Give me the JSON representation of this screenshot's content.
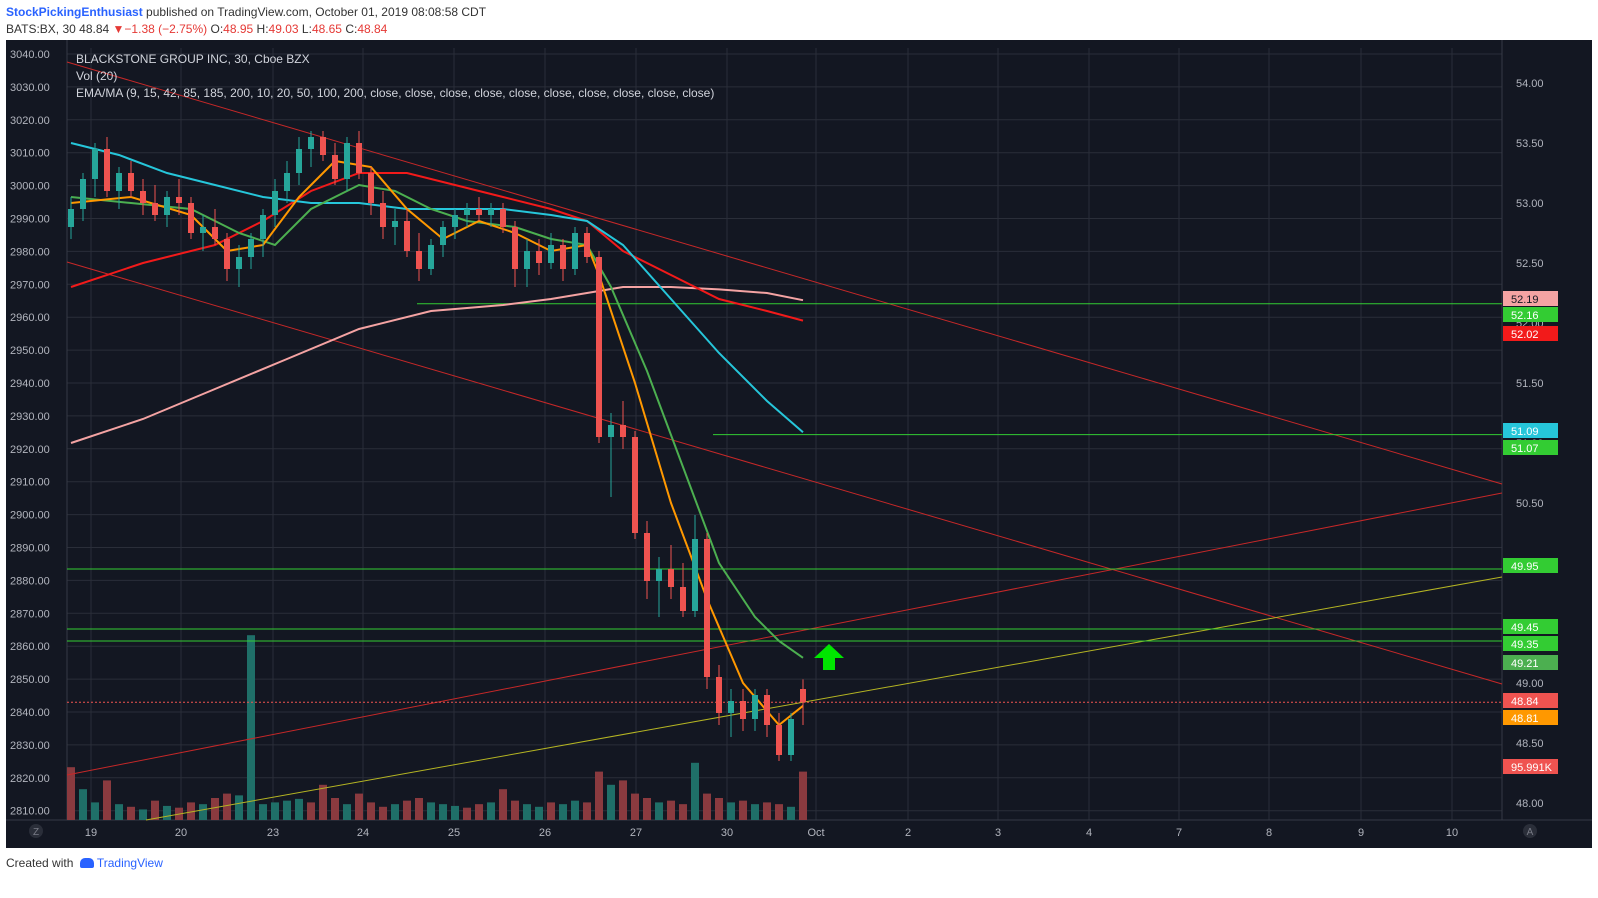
{
  "header": {
    "author": "StockPickingEnthusiast",
    "published_text": "published on TradingView.com, October 01, 2019 08:08:58 CDT",
    "symbol": "BATS:BX, 30",
    "last": "48.84",
    "change_arrow": "▼",
    "change": "−1.38 (−2.75%)",
    "open_label": "O:",
    "open": "48.95",
    "high_label": "H:",
    "high": "49.03",
    "low_label": "L:",
    "low": "48.65",
    "close_label": "C:",
    "close": "48.84"
  },
  "overlay": {
    "title": "BLACKSTONE GROUP INC, 30, Cboe BZX",
    "vol": "Vol (20)",
    "ema": "EMA/MA (9, 15, 42, 85, 185, 200, 10, 20, 50, 100, 200, close, close, close, close, close, close, close, close, close, close)"
  },
  "footer": {
    "created_with": "Created with",
    "brand": "TradingView"
  },
  "corner_buttons": {
    "left": "Z",
    "right": "A"
  },
  "colors": {
    "background": "#131722",
    "grid": "#2a2e39",
    "up": "#26a69a",
    "down": "#ef5350",
    "ema_orange": "#ff9800",
    "ema_green": "#4caf50",
    "ema_cyan": "#26c6da",
    "ma_red": "#f21a1a",
    "ma_pink": "#f4a3a3",
    "hline": "#33cc33",
    "trend_red": "#c62828",
    "trend_yellow": "#b5b523",
    "arrow": "#00e600"
  },
  "chart_data": {
    "type": "candlestick",
    "title": "BLACKSTONE GROUP INC, 30, Cboe BZX",
    "left_axis_ticks": [
      "3040.00",
      "3030.00",
      "3020.00",
      "3010.00",
      "3000.00",
      "2990.00",
      "2980.00",
      "2970.00",
      "2960.00",
      "2950.00",
      "2940.00",
      "2930.00",
      "2920.00",
      "2910.00",
      "2900.00",
      "2890.00",
      "2880.00",
      "2870.00",
      "2860.00",
      "2850.00",
      "2840.00",
      "2830.00",
      "2820.00",
      "2810.00"
    ],
    "left_axis_range": [
      2810,
      3040
    ],
    "right_axis_ticks": [
      "54.00",
      "53.50",
      "53.00",
      "52.50",
      "52.00",
      "51.50",
      "51.00",
      "50.50",
      "50.00",
      "49.50",
      "49.00",
      "48.50",
      "48.00"
    ],
    "right_axis_range": [
      48.0,
      54.0
    ],
    "x_ticks": [
      "19",
      "20",
      "23",
      "24",
      "25",
      "26",
      "27",
      "30",
      "Oct",
      "2",
      "3",
      "4",
      "7",
      "8",
      "9",
      "10"
    ],
    "price_labels": [
      {
        "value": "52.19",
        "color": "#f4a3a3"
      },
      {
        "value": "52.16",
        "color": "#33cc33"
      },
      {
        "value": "52.02",
        "color": "#f21a1a"
      },
      {
        "value": "51.09",
        "color": "#26c6da"
      },
      {
        "value": "51.07",
        "color": "#33cc33"
      },
      {
        "value": "49.95",
        "color": "#33cc33"
      },
      {
        "value": "49.45",
        "color": "#33cc33"
      },
      {
        "value": "49.35",
        "color": "#33cc33"
      },
      {
        "value": "49.21",
        "color": "#4caf50"
      },
      {
        "value": "48.84",
        "color": "#ef5350"
      },
      {
        "value": "48.81",
        "color": "#ff9800"
      },
      {
        "value": "95.991K",
        "color": "#ef5350"
      }
    ],
    "horizontal_levels": [
      52.16,
      51.07,
      49.95,
      49.45,
      49.35
    ],
    "last_price": 48.84,
    "candles": [
      [
        52.8,
        53.05,
        52.7,
        52.95
      ],
      [
        52.95,
        53.25,
        52.85,
        53.2
      ],
      [
        53.2,
        53.5,
        53.05,
        53.45
      ],
      [
        53.45,
        53.55,
        53.05,
        53.1
      ],
      [
        53.1,
        53.3,
        52.95,
        53.25
      ],
      [
        53.25,
        53.35,
        53.05,
        53.1
      ],
      [
        53.1,
        53.2,
        52.9,
        53.0
      ],
      [
        53.0,
        53.15,
        52.85,
        52.9
      ],
      [
        52.9,
        53.1,
        52.8,
        53.05
      ],
      [
        53.05,
        53.2,
        52.9,
        53.0
      ],
      [
        53.0,
        53.05,
        52.7,
        52.75
      ],
      [
        52.75,
        52.9,
        52.6,
        52.8
      ],
      [
        52.8,
        52.95,
        52.65,
        52.7
      ],
      [
        52.7,
        52.75,
        52.35,
        52.45
      ],
      [
        52.45,
        52.65,
        52.3,
        52.55
      ],
      [
        52.55,
        52.75,
        52.45,
        52.7
      ],
      [
        52.7,
        52.95,
        52.55,
        52.9
      ],
      [
        52.9,
        53.2,
        52.8,
        53.1
      ],
      [
        53.1,
        53.35,
        53.0,
        53.25
      ],
      [
        53.25,
        53.55,
        53.15,
        53.45
      ],
      [
        53.45,
        53.6,
        53.3,
        53.55
      ],
      [
        53.55,
        53.6,
        53.35,
        53.4
      ],
      [
        53.4,
        53.5,
        53.15,
        53.2
      ],
      [
        53.2,
        53.55,
        53.1,
        53.5
      ],
      [
        53.5,
        53.6,
        53.2,
        53.25
      ],
      [
        53.25,
        53.3,
        52.9,
        53.0
      ],
      [
        53.0,
        53.1,
        52.7,
        52.8
      ],
      [
        52.8,
        52.95,
        52.65,
        52.85
      ],
      [
        52.85,
        52.95,
        52.55,
        52.6
      ],
      [
        52.6,
        52.75,
        52.35,
        52.45
      ],
      [
        52.45,
        52.7,
        52.4,
        52.65
      ],
      [
        52.65,
        52.85,
        52.55,
        52.8
      ],
      [
        52.8,
        52.95,
        52.7,
        52.9
      ],
      [
        52.9,
        53.0,
        52.8,
        52.95
      ],
      [
        52.95,
        53.05,
        52.85,
        52.9
      ],
      [
        52.9,
        53.0,
        52.8,
        52.95
      ],
      [
        52.95,
        53.0,
        52.75,
        52.8
      ],
      [
        52.8,
        52.85,
        52.3,
        52.45
      ],
      [
        52.45,
        52.7,
        52.3,
        52.6
      ],
      [
        52.6,
        52.7,
        52.4,
        52.5
      ],
      [
        52.5,
        52.75,
        52.45,
        52.65
      ],
      [
        52.65,
        52.7,
        52.35,
        52.45
      ],
      [
        52.45,
        52.8,
        52.4,
        52.75
      ],
      [
        52.75,
        52.8,
        52.5,
        52.55
      ],
      [
        52.55,
        52.6,
        51.0,
        51.05
      ],
      [
        51.05,
        51.25,
        50.55,
        51.15
      ],
      [
        51.15,
        51.35,
        50.95,
        51.05
      ],
      [
        51.05,
        51.1,
        50.2,
        50.25
      ],
      [
        50.25,
        50.35,
        49.7,
        49.85
      ],
      [
        49.85,
        50.05,
        49.55,
        49.95
      ],
      [
        49.95,
        50.15,
        49.7,
        49.8
      ],
      [
        49.8,
        50.0,
        49.55,
        49.6
      ],
      [
        49.6,
        50.4,
        49.55,
        50.2
      ],
      [
        50.2,
        50.25,
        48.95,
        49.05
      ],
      [
        49.05,
        49.15,
        48.65,
        48.75
      ],
      [
        48.75,
        48.95,
        48.55,
        48.85
      ],
      [
        48.85,
        48.95,
        48.6,
        48.7
      ],
      [
        48.7,
        48.95,
        48.6,
        48.9
      ],
      [
        48.9,
        48.95,
        48.55,
        48.65
      ],
      [
        48.65,
        48.75,
        48.35,
        48.4
      ],
      [
        48.4,
        48.75,
        48.35,
        48.7
      ],
      [
        48.95,
        49.03,
        48.65,
        48.84
      ]
    ],
    "volume": [
      {
        "v": 60,
        "up": false
      },
      {
        "v": 35,
        "up": true
      },
      {
        "v": 20,
        "up": true
      },
      {
        "v": 45,
        "up": false
      },
      {
        "v": 18,
        "up": true
      },
      {
        "v": 15,
        "up": false
      },
      {
        "v": 12,
        "up": true
      },
      {
        "v": 22,
        "up": false
      },
      {
        "v": 16,
        "up": true
      },
      {
        "v": 14,
        "up": false
      },
      {
        "v": 20,
        "up": false
      },
      {
        "v": 18,
        "up": true
      },
      {
        "v": 25,
        "up": false
      },
      {
        "v": 30,
        "up": false
      },
      {
        "v": 28,
        "up": true
      },
      {
        "v": 210,
        "up": true
      },
      {
        "v": 18,
        "up": true
      },
      {
        "v": 20,
        "up": true
      },
      {
        "v": 22,
        "up": true
      },
      {
        "v": 24,
        "up": true
      },
      {
        "v": 20,
        "up": false
      },
      {
        "v": 40,
        "up": false
      },
      {
        "v": 25,
        "up": false
      },
      {
        "v": 18,
        "up": true
      },
      {
        "v": 30,
        "up": false
      },
      {
        "v": 20,
        "up": false
      },
      {
        "v": 15,
        "up": false
      },
      {
        "v": 18,
        "up": true
      },
      {
        "v": 22,
        "up": false
      },
      {
        "v": 25,
        "up": false
      },
      {
        "v": 20,
        "up": true
      },
      {
        "v": 18,
        "up": true
      },
      {
        "v": 16,
        "up": true
      },
      {
        "v": 14,
        "up": false
      },
      {
        "v": 18,
        "up": false
      },
      {
        "v": 20,
        "up": true
      },
      {
        "v": 35,
        "up": false
      },
      {
        "v": 22,
        "up": false
      },
      {
        "v": 18,
        "up": true
      },
      {
        "v": 15,
        "up": true
      },
      {
        "v": 20,
        "up": false
      },
      {
        "v": 18,
        "up": true
      },
      {
        "v": 22,
        "up": true
      },
      {
        "v": 20,
        "up": false
      },
      {
        "v": 55,
        "up": false
      },
      {
        "v": 40,
        "up": true
      },
      {
        "v": 45,
        "up": false
      },
      {
        "v": 30,
        "up": false
      },
      {
        "v": 25,
        "up": false
      },
      {
        "v": 20,
        "up": true
      },
      {
        "v": 22,
        "up": false
      },
      {
        "v": 18,
        "up": false
      },
      {
        "v": 65,
        "up": true
      },
      {
        "v": 30,
        "up": false
      },
      {
        "v": 25,
        "up": false
      },
      {
        "v": 20,
        "up": true
      },
      {
        "v": 22,
        "up": false
      },
      {
        "v": 18,
        "up": true
      },
      {
        "v": 20,
        "up": false
      },
      {
        "v": 18,
        "up": false
      },
      {
        "v": 15,
        "up": true
      },
      {
        "v": 55,
        "up": false
      }
    ],
    "ema_9": [
      [
        0,
        53.0
      ],
      [
        5,
        53.05
      ],
      [
        10,
        52.9
      ],
      [
        13,
        52.6
      ],
      [
        16,
        52.65
      ],
      [
        19,
        53.05
      ],
      [
        22,
        53.35
      ],
      [
        25,
        53.3
      ],
      [
        28,
        52.95
      ],
      [
        31,
        52.7
      ],
      [
        34,
        52.85
      ],
      [
        37,
        52.75
      ],
      [
        40,
        52.6
      ],
      [
        43,
        52.65
      ],
      [
        44,
        52.4
      ],
      [
        47,
        51.5
      ],
      [
        50,
        50.5
      ],
      [
        53,
        49.7
      ],
      [
        56,
        49.0
      ],
      [
        59,
        48.65
      ],
      [
        61,
        48.81
      ]
    ],
    "ema_20": [
      [
        0,
        53.05
      ],
      [
        5,
        53.0
      ],
      [
        10,
        52.95
      ],
      [
        14,
        52.75
      ],
      [
        17,
        52.65
      ],
      [
        20,
        52.95
      ],
      [
        24,
        53.15
      ],
      [
        27,
        53.1
      ],
      [
        30,
        52.95
      ],
      [
        33,
        52.85
      ],
      [
        37,
        52.8
      ],
      [
        40,
        52.7
      ],
      [
        43,
        52.65
      ],
      [
        45,
        52.3
      ],
      [
        48,
        51.6
      ],
      [
        51,
        50.8
      ],
      [
        54,
        50.0
      ],
      [
        57,
        49.55
      ],
      [
        59,
        49.35
      ],
      [
        61,
        49.21
      ]
    ],
    "ema_50": [
      [
        0,
        53.5
      ],
      [
        4,
        53.4
      ],
      [
        8,
        53.25
      ],
      [
        12,
        53.15
      ],
      [
        16,
        53.05
      ],
      [
        20,
        53.0
      ],
      [
        24,
        53.0
      ],
      [
        28,
        52.95
      ],
      [
        32,
        52.95
      ],
      [
        36,
        52.95
      ],
      [
        40,
        52.9
      ],
      [
        43,
        52.85
      ],
      [
        46,
        52.65
      ],
      [
        50,
        52.2
      ],
      [
        54,
        51.75
      ],
      [
        58,
        51.35
      ],
      [
        61,
        51.09
      ]
    ],
    "ma_red": [
      [
        0,
        52.3
      ],
      [
        6,
        52.5
      ],
      [
        12,
        52.65
      ],
      [
        16,
        52.85
      ],
      [
        20,
        53.1
      ],
      [
        24,
        53.25
      ],
      [
        28,
        53.25
      ],
      [
        32,
        53.15
      ],
      [
        36,
        53.05
      ],
      [
        40,
        52.95
      ],
      [
        43,
        52.85
      ],
      [
        46,
        52.6
      ],
      [
        50,
        52.4
      ],
      [
        54,
        52.2
      ],
      [
        58,
        52.1
      ],
      [
        61,
        52.02
      ]
    ],
    "ma_pink": [
      [
        0,
        51.0
      ],
      [
        6,
        51.2
      ],
      [
        12,
        51.45
      ],
      [
        18,
        51.7
      ],
      [
        24,
        51.95
      ],
      [
        30,
        52.1
      ],
      [
        36,
        52.15
      ],
      [
        40,
        52.2
      ],
      [
        43,
        52.25
      ],
      [
        46,
        52.3
      ],
      [
        50,
        52.3
      ],
      [
        54,
        52.28
      ],
      [
        58,
        52.25
      ],
      [
        61,
        52.19
      ]
    ]
  }
}
